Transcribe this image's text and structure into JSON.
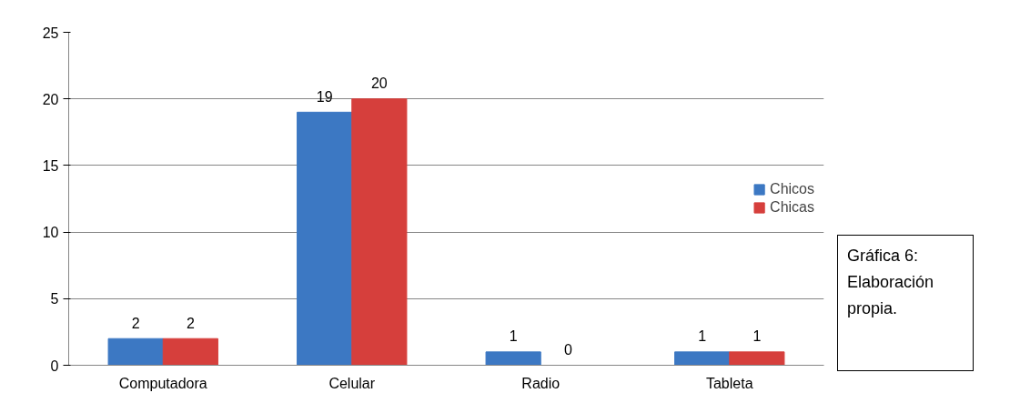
{
  "chart_data": {
    "type": "bar",
    "categories": [
      "Computadora",
      "Celular",
      "Radio",
      "Tableta"
    ],
    "series": [
      {
        "name": "Chicos",
        "color": "#3c78c3",
        "values": [
          2,
          19,
          1,
          1
        ]
      },
      {
        "name": "Chicas",
        "color": "#d63f3c",
        "values": [
          2,
          20,
          0,
          1
        ]
      }
    ],
    "ylim": [
      0,
      25
    ],
    "yticks": [
      0,
      5,
      10,
      15,
      20,
      25
    ],
    "grid": "y",
    "legend": "right",
    "data_labels": true,
    "annotations": [
      "Gráfica 6: Elaboración propia."
    ]
  }
}
